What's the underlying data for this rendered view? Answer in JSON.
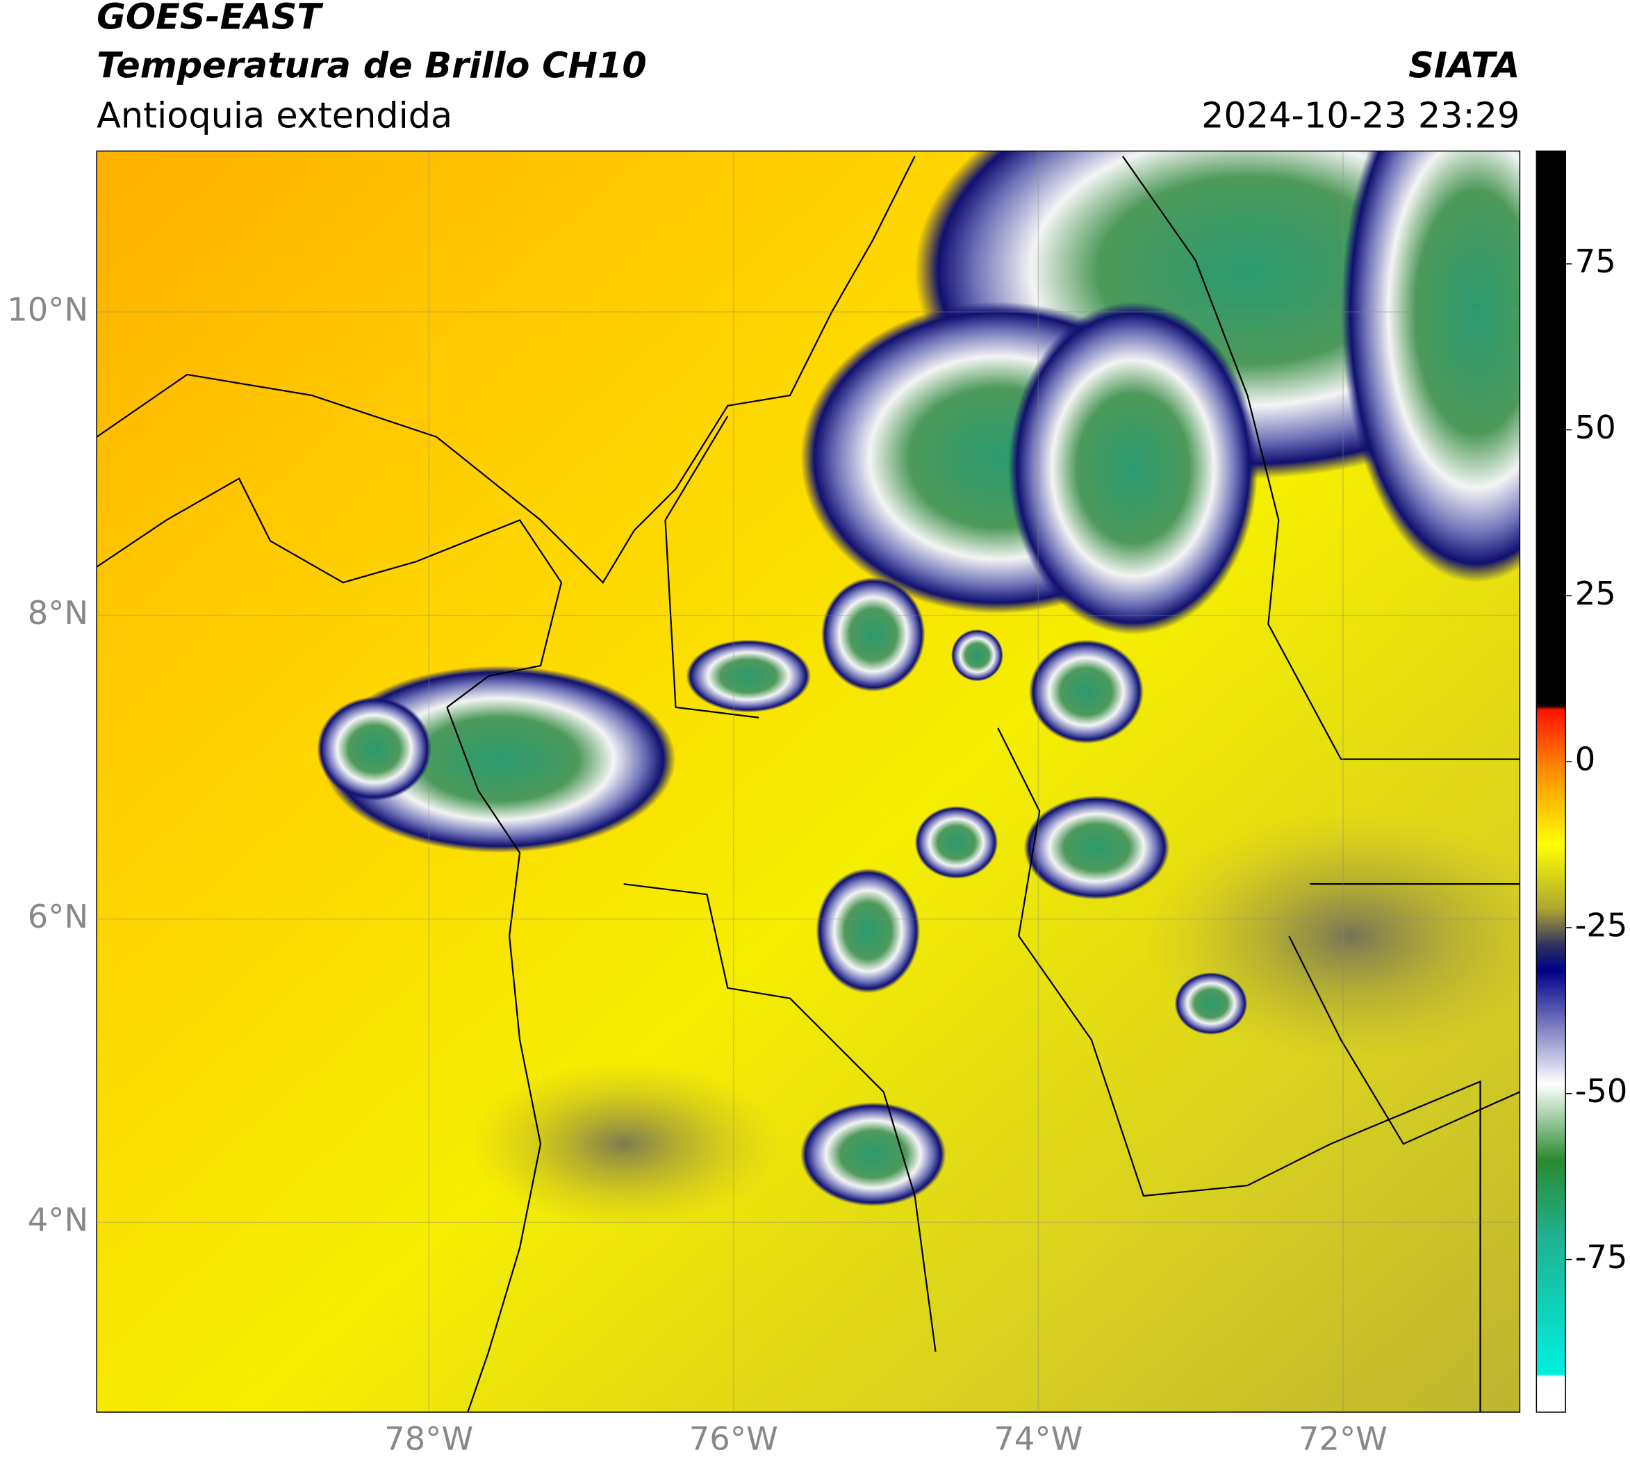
{
  "header": {
    "title": "GOES-EAST",
    "subtitle": "Temperatura de Brillo CH10",
    "region": "Antioquia extendida",
    "source": "SIATA",
    "datetime": "2024-10-23 23:29"
  },
  "map": {
    "lonlim": [
      -80.18,
      -70.84
    ],
    "latlim": [
      2.75,
      11.06
    ],
    "lonticks": [
      {
        "value": -78,
        "label": "78°W"
      },
      {
        "value": -76,
        "label": "76°W"
      },
      {
        "value": -74,
        "label": "74°W"
      },
      {
        "value": -72,
        "label": "72°W"
      }
    ],
    "latticks": [
      {
        "value": 10,
        "label": "10°N"
      },
      {
        "value": 8,
        "label": "8°N"
      },
      {
        "value": 6,
        "label": "6°N"
      },
      {
        "value": 4,
        "label": "4°N"
      }
    ],
    "grid": true
  },
  "colorbar": {
    "lim": [
      -98,
      92
    ],
    "ticks": [
      75,
      50,
      25,
      0,
      -25,
      -50,
      -75
    ]
  }
}
